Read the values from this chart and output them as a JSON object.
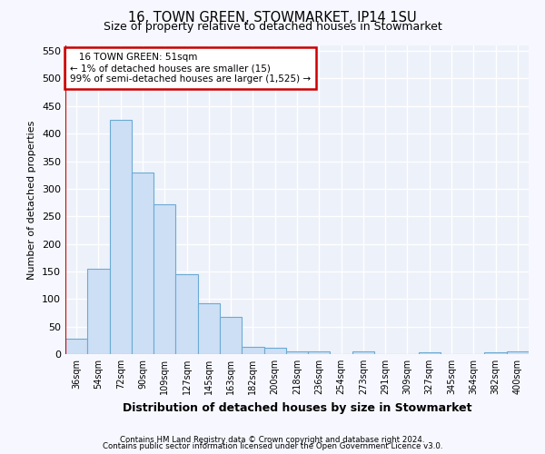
{
  "title1": "16, TOWN GREEN, STOWMARKET, IP14 1SU",
  "title2": "Size of property relative to detached houses in Stowmarket",
  "xlabel": "Distribution of detached houses by size in Stowmarket",
  "ylabel": "Number of detached properties",
  "footnote1": "Contains HM Land Registry data © Crown copyright and database right 2024.",
  "footnote2": "Contains public sector information licensed under the Open Government Licence v3.0.",
  "annotation_line1": "16 TOWN GREEN: 51sqm",
  "annotation_line2": "← 1% of detached houses are smaller (15)",
  "annotation_line3": "99% of semi-detached houses are larger (1,525) →",
  "bar_color": "#cddff5",
  "bar_edge_color": "#6aaad4",
  "highlight_line_color": "#cc0000",
  "annotation_box_edge_color": "#cc0000",
  "background_color": "#f7f8ff",
  "plot_bg_color": "#edf1fa",
  "grid_color": "#ffffff",
  "categories": [
    "36sqm",
    "54sqm",
    "72sqm",
    "90sqm",
    "109sqm",
    "127sqm",
    "145sqm",
    "163sqm",
    "182sqm",
    "200sqm",
    "218sqm",
    "236sqm",
    "254sqm",
    "273sqm",
    "291sqm",
    "309sqm",
    "327sqm",
    "345sqm",
    "364sqm",
    "382sqm",
    "400sqm"
  ],
  "values": [
    28,
    155,
    425,
    330,
    272,
    145,
    92,
    68,
    13,
    11,
    5,
    5,
    0,
    5,
    0,
    0,
    4,
    0,
    0,
    4,
    5
  ],
  "ylim": [
    0,
    560
  ],
  "yticks": [
    0,
    50,
    100,
    150,
    200,
    250,
    300,
    350,
    400,
    450,
    500,
    550
  ],
  "figsize": [
    6.0,
    5.0
  ],
  "dpi": 100
}
